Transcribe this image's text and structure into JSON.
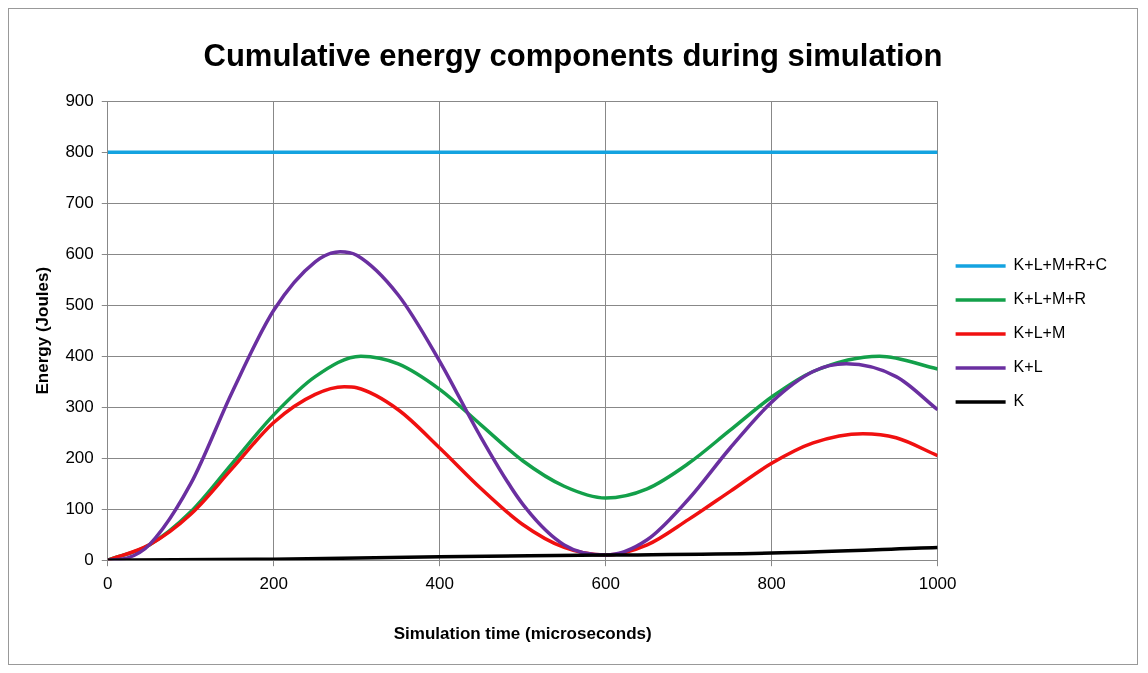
{
  "chart_data": {
    "type": "line",
    "title": "Cumulative energy components during simulation",
    "xlabel": "Simulation time (microseconds)",
    "ylabel": "Energy (Joules)",
    "xlim": [
      0,
      1000
    ],
    "xticks": [
      0,
      200,
      400,
      600,
      800,
      1000
    ],
    "ylim": [
      0,
      900
    ],
    "yticks": [
      0,
      100,
      200,
      300,
      400,
      500,
      600,
      700,
      800,
      900
    ],
    "grid": true,
    "legend": "right",
    "marker": "none",
    "line_style": "solid",
    "series": [
      {
        "name": "K+L+M+R+C",
        "color": "#14a3e0",
        "x": [
          0,
          1000
        ],
        "values": [
          800,
          800
        ]
      },
      {
        "name": "K+L+M+R",
        "color": "#13a04a",
        "x": [
          0,
          50,
          100,
          150,
          200,
          250,
          305,
          350,
          400,
          450,
          500,
          550,
          600,
          650,
          700,
          750,
          800,
          850,
          930,
          1000
        ],
        "values": [
          0,
          30,
          95,
          190,
          285,
          360,
          400,
          385,
          335,
          265,
          195,
          145,
          122,
          140,
          190,
          255,
          320,
          370,
          400,
          375
        ]
      },
      {
        "name": "K+L+M",
        "color": "#f01010",
        "x": [
          0,
          50,
          100,
          150,
          200,
          250,
          285,
          300,
          350,
          400,
          450,
          500,
          550,
          600,
          650,
          700,
          750,
          800,
          850,
          910,
          950,
          1000
        ],
        "values": [
          0,
          30,
          90,
          180,
          270,
          325,
          340,
          338,
          295,
          220,
          140,
          70,
          25,
          10,
          30,
          80,
          135,
          190,
          230,
          248,
          240,
          205
        ]
      },
      {
        "name": "K+L",
        "color": "#6a2fa0",
        "x": [
          0,
          25,
          50,
          100,
          150,
          200,
          250,
          280,
          300,
          350,
          400,
          450,
          500,
          550,
          600,
          650,
          700,
          750,
          800,
          850,
          890,
          950,
          1000
        ],
        "values": [
          0,
          5,
          30,
          150,
          330,
          490,
          585,
          605,
          598,
          520,
          390,
          240,
          110,
          30,
          10,
          40,
          120,
          220,
          310,
          370,
          385,
          360,
          295
        ]
      },
      {
        "name": "K",
        "color": "#000000",
        "x": [
          0,
          200,
          400,
          600,
          800,
          1000
        ],
        "values": [
          0,
          2,
          7,
          10,
          14,
          25
        ]
      }
    ]
  }
}
